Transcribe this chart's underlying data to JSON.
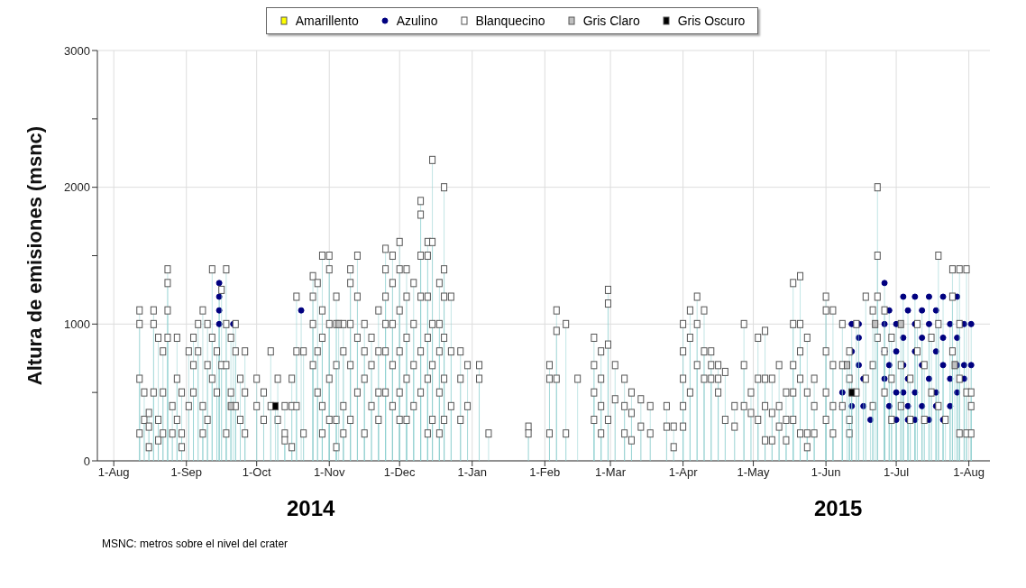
{
  "chart_data": {
    "type": "lollipop",
    "ylabel": "Altura de emisiones (msnc)",
    "legend": "top",
    "grid": true,
    "xlim": [
      "2014-07-25",
      "2015-08-10"
    ],
    "xticks": [
      {
        "value": "2014-08-01",
        "label": "1-Aug"
      },
      {
        "value": "2014-09-01",
        "label": "1-Sep"
      },
      {
        "value": "2014-10-01",
        "label": "1-Oct"
      },
      {
        "value": "2014-11-01",
        "label": "1-Nov"
      },
      {
        "value": "2014-12-01",
        "label": "1-Dec"
      },
      {
        "value": "2015-01-01",
        "label": "1-Jan"
      },
      {
        "value": "2015-02-01",
        "label": "1-Feb"
      },
      {
        "value": "2015-03-01",
        "label": "1-Mar"
      },
      {
        "value": "2015-04-01",
        "label": "1-Apr"
      },
      {
        "value": "2015-05-01",
        "label": "1-May"
      },
      {
        "value": "2015-06-01",
        "label": "1-Jun"
      },
      {
        "value": "2015-07-01",
        "label": "1-Jul"
      },
      {
        "value": "2015-08-01",
        "label": "1-Aug"
      }
    ],
    "ylim": [
      0,
      3000
    ],
    "yticks": [
      0,
      {
        "value": 500,
        "label": null
      },
      1000,
      {
        "value": 1500,
        "label": null
      },
      2000,
      {
        "value": 2500,
        "label": null
      },
      3000
    ],
    "annotations": [
      "2014",
      "2015",
      "MSNC: metros sobre el nivel del crater"
    ],
    "series": [
      {
        "name": "Amarillento",
        "color": "#ffff00",
        "marker": "square"
      },
      {
        "name": "Azulino",
        "color": "#000080",
        "marker": "circle",
        "x": [
          "2014-09-15",
          "2014-09-15",
          "2014-09-15",
          "2014-09-15",
          "2014-09-21",
          "2014-10-20",
          "2015-06-08",
          "2015-06-08",
          "2015-06-12",
          "2015-06-12",
          "2015-06-12",
          "2015-06-15",
          "2015-06-15",
          "2015-06-15",
          "2015-06-17",
          "2015-06-17",
          "2015-06-20",
          "2015-06-26",
          "2015-06-26",
          "2015-06-26",
          "2015-06-26",
          "2015-06-28",
          "2015-06-28",
          "2015-06-28",
          "2015-07-01",
          "2015-07-01",
          "2015-07-01",
          "2015-07-01",
          "2015-07-04",
          "2015-07-04",
          "2015-07-04",
          "2015-07-04",
          "2015-07-06",
          "2015-07-06",
          "2015-07-06",
          "2015-07-06",
          "2015-07-09",
          "2015-07-09",
          "2015-07-09",
          "2015-07-09",
          "2015-07-09",
          "2015-07-12",
          "2015-07-12",
          "2015-07-12",
          "2015-07-12",
          "2015-07-15",
          "2015-07-15",
          "2015-07-15",
          "2015-07-15",
          "2015-07-18",
          "2015-07-18",
          "2015-07-18",
          "2015-07-18",
          "2015-07-21",
          "2015-07-21",
          "2015-07-21",
          "2015-07-21",
          "2015-07-24",
          "2015-07-24",
          "2015-07-24",
          "2015-07-27",
          "2015-07-27",
          "2015-07-27",
          "2015-07-27",
          "2015-07-30",
          "2015-07-30",
          "2015-07-30",
          "2015-08-02",
          "2015-08-02"
        ],
        "values": [
          1300,
          1200,
          1100,
          1000,
          1000,
          1100,
          400,
          500,
          400,
          800,
          1000,
          700,
          900,
          1000,
          400,
          600,
          300,
          1300,
          1000,
          800,
          600,
          1100,
          700,
          400,
          1000,
          800,
          500,
          300,
          1200,
          900,
          700,
          500,
          1100,
          600,
          400,
          300,
          1200,
          1000,
          800,
          500,
          300,
          1100,
          900,
          700,
          400,
          1200,
          1000,
          600,
          300,
          1100,
          800,
          500,
          400,
          1200,
          900,
          700,
          300,
          1000,
          600,
          400,
          1200,
          900,
          700,
          500,
          1000,
          700,
          600,
          1000,
          700
        ]
      },
      {
        "name": "Blanquecino",
        "color": "#ffffff",
        "marker": "square",
        "x": [
          "2014-08-12",
          "2014-08-12",
          "2014-08-12",
          "2014-08-12",
          "2014-08-14",
          "2014-08-14",
          "2014-08-16",
          "2014-08-16",
          "2014-08-16",
          "2014-08-18",
          "2014-08-18",
          "2014-08-18",
          "2014-08-20",
          "2014-08-20",
          "2014-08-20",
          "2014-08-22",
          "2014-08-22",
          "2014-08-22",
          "2014-08-24",
          "2014-08-24",
          "2014-08-24",
          "2014-08-24",
          "2014-08-26",
          "2014-08-26",
          "2014-08-28",
          "2014-08-28",
          "2014-08-28",
          "2014-08-30",
          "2014-08-30",
          "2014-08-30",
          "2014-09-02",
          "2014-09-02",
          "2014-09-04",
          "2014-09-04",
          "2014-09-04",
          "2014-09-06",
          "2014-09-06",
          "2014-09-08",
          "2014-09-08",
          "2014-09-08",
          "2014-09-10",
          "2014-09-10",
          "2014-09-10",
          "2014-09-12",
          "2014-09-12",
          "2014-09-12",
          "2014-09-14",
          "2014-09-14",
          "2014-09-16",
          "2014-09-16",
          "2014-09-18",
          "2014-09-18",
          "2014-09-18",
          "2014-09-18",
          "2014-09-20",
          "2014-09-20",
          "2014-09-22",
          "2014-09-22",
          "2014-09-22",
          "2014-09-24",
          "2014-09-24",
          "2014-09-26",
          "2014-09-26",
          "2014-09-26",
          "2014-10-01",
          "2014-10-01",
          "2014-10-04",
          "2014-10-04",
          "2014-10-07",
          "2014-10-07",
          "2014-10-10",
          "2014-10-10",
          "2014-10-13",
          "2014-10-13",
          "2014-10-13",
          "2014-10-16",
          "2014-10-16",
          "2014-10-16",
          "2014-10-18",
          "2014-10-18",
          "2014-10-18",
          "2014-10-21",
          "2014-10-21",
          "2014-10-25",
          "2014-10-25",
          "2014-10-25",
          "2014-10-25",
          "2014-10-27",
          "2014-10-27",
          "2014-10-27",
          "2014-10-29",
          "2014-10-29",
          "2014-10-29",
          "2014-10-29",
          "2014-10-29",
          "2014-11-01",
          "2014-11-01",
          "2014-11-01",
          "2014-11-01",
          "2014-11-01",
          "2014-11-04",
          "2014-11-04",
          "2014-11-04",
          "2014-11-04",
          "2014-11-04",
          "2014-11-07",
          "2014-11-07",
          "2014-11-07",
          "2014-11-07",
          "2014-11-10",
          "2014-11-10",
          "2014-11-10",
          "2014-11-10",
          "2014-11-10",
          "2014-11-13",
          "2014-11-13",
          "2014-11-13",
          "2014-11-13",
          "2014-11-16",
          "2014-11-16",
          "2014-11-16",
          "2014-11-16",
          "2014-11-19",
          "2014-11-19",
          "2014-11-19",
          "2014-11-22",
          "2014-11-22",
          "2014-11-22",
          "2014-11-22",
          "2014-11-25",
          "2014-11-25",
          "2014-11-25",
          "2014-11-25",
          "2014-11-25",
          "2014-11-25",
          "2014-11-28",
          "2014-11-28",
          "2014-11-28",
          "2014-11-28",
          "2014-11-28",
          "2014-12-01",
          "2014-12-01",
          "2014-12-01",
          "2014-12-01",
          "2014-12-01",
          "2014-12-01",
          "2014-12-04",
          "2014-12-04",
          "2014-12-04",
          "2014-12-04",
          "2014-12-04",
          "2014-12-07",
          "2014-12-07",
          "2014-12-07",
          "2014-12-07",
          "2014-12-10",
          "2014-12-10",
          "2014-12-10",
          "2014-12-10",
          "2014-12-10",
          "2014-12-10",
          "2014-12-13",
          "2014-12-13",
          "2014-12-13",
          "2014-12-13",
          "2014-12-13",
          "2014-12-13",
          "2014-12-15",
          "2014-12-15",
          "2014-12-15",
          "2014-12-15",
          "2014-12-15",
          "2014-12-18",
          "2014-12-18",
          "2014-12-18",
          "2014-12-18",
          "2014-12-18",
          "2014-12-20",
          "2014-12-20",
          "2014-12-20",
          "2014-12-20",
          "2014-12-20",
          "2014-12-20",
          "2014-12-23",
          "2014-12-23",
          "2014-12-23",
          "2014-12-27",
          "2014-12-27",
          "2014-12-27",
          "2014-12-30",
          "2014-12-30",
          "2015-01-04",
          "2015-01-04",
          "2015-01-08",
          "2015-01-25",
          "2015-01-25",
          "2015-02-03",
          "2015-02-03",
          "2015-02-03",
          "2015-02-06",
          "2015-02-06",
          "2015-02-06",
          "2015-02-10",
          "2015-02-10",
          "2015-02-15",
          "2015-02-22",
          "2015-02-22",
          "2015-02-22",
          "2015-02-22",
          "2015-02-25",
          "2015-02-25",
          "2015-02-25",
          "2015-02-25",
          "2015-02-28",
          "2015-02-28",
          "2015-02-28",
          "2015-02-28",
          "2015-03-03",
          "2015-03-03",
          "2015-03-07",
          "2015-03-07",
          "2015-03-07",
          "2015-03-10",
          "2015-03-10",
          "2015-03-10",
          "2015-03-14",
          "2015-03-14",
          "2015-03-18",
          "2015-03-18",
          "2015-03-25",
          "2015-03-25",
          "2015-03-28",
          "2015-03-28",
          "2015-04-01",
          "2015-04-01",
          "2015-04-01",
          "2015-04-01",
          "2015-04-01",
          "2015-04-04",
          "2015-04-04",
          "2015-04-04",
          "2015-04-07",
          "2015-04-07",
          "2015-04-07",
          "2015-04-10",
          "2015-04-10",
          "2015-04-10",
          "2015-04-13",
          "2015-04-13",
          "2015-04-13",
          "2015-04-16",
          "2015-04-16",
          "2015-04-16",
          "2015-04-19",
          "2015-04-19",
          "2015-04-23",
          "2015-04-23",
          "2015-04-27",
          "2015-04-27",
          "2015-04-27",
          "2015-04-30",
          "2015-04-30",
          "2015-05-03",
          "2015-05-03",
          "2015-05-03",
          "2015-05-06",
          "2015-05-06",
          "2015-05-06",
          "2015-05-06",
          "2015-05-09",
          "2015-05-09",
          "2015-05-09",
          "2015-05-12",
          "2015-05-12",
          "2015-05-12",
          "2015-05-15",
          "2015-05-15",
          "2015-05-15",
          "2015-05-18",
          "2015-05-18",
          "2015-05-18",
          "2015-05-18",
          "2015-05-18",
          "2015-05-21",
          "2015-05-21",
          "2015-05-21",
          "2015-05-21",
          "2015-05-21",
          "2015-05-24",
          "2015-05-24",
          "2015-05-24",
          "2015-05-24",
          "2015-05-27",
          "2015-05-27",
          "2015-05-27",
          "2015-06-01",
          "2015-06-01",
          "2015-06-01",
          "2015-06-01",
          "2015-06-01",
          "2015-06-04",
          "2015-06-04",
          "2015-06-04",
          "2015-06-04",
          "2015-06-08",
          "2015-06-08",
          "2015-06-08",
          "2015-06-11",
          "2015-06-11",
          "2015-06-11",
          "2015-06-11",
          "2015-06-14",
          "2015-06-14",
          "2015-06-18",
          "2015-06-18",
          "2015-06-21",
          "2015-06-21",
          "2015-06-21",
          "2015-06-23",
          "2015-06-23",
          "2015-06-23",
          "2015-06-23",
          "2015-06-26",
          "2015-06-26",
          "2015-06-26",
          "2015-06-29",
          "2015-06-29",
          "2015-06-29",
          "2015-07-03",
          "2015-07-03",
          "2015-07-07",
          "2015-07-07",
          "2015-07-10",
          "2015-07-10",
          "2015-07-13",
          "2015-07-13",
          "2015-07-16",
          "2015-07-16",
          "2015-07-19",
          "2015-07-19",
          "2015-07-19",
          "2015-07-22",
          "2015-07-25",
          "2015-07-25",
          "2015-07-25",
          "2015-07-28",
          "2015-07-28",
          "2015-07-28",
          "2015-07-28",
          "2015-07-31",
          "2015-07-31",
          "2015-07-31",
          "2015-08-02",
          "2015-08-02",
          "2015-08-02"
        ],
        "values": [
          1100,
          1000,
          600,
          200,
          500,
          300,
          350,
          250,
          100,
          1100,
          1000,
          500,
          900,
          300,
          150,
          800,
          500,
          200,
          1400,
          1300,
          1100,
          900,
          400,
          200,
          900,
          600,
          300,
          500,
          200,
          100,
          800,
          400,
          900,
          700,
          500,
          1000,
          800,
          1100,
          400,
          200,
          1000,
          700,
          300,
          1400,
          900,
          600,
          800,
          500,
          1250,
          700,
          1400,
          1000,
          700,
          200,
          900,
          500,
          1000,
          800,
          400,
          600,
          300,
          800,
          500,
          200,
          600,
          400,
          500,
          300,
          800,
          400,
          600,
          300,
          400,
          200,
          150,
          600,
          400,
          100,
          1200,
          800,
          400,
          800,
          200,
          1350,
          1200,
          1000,
          700,
          1300,
          800,
          500,
          1500,
          1100,
          900,
          400,
          200,
          1500,
          1400,
          1000,
          600,
          300,
          1200,
          1000,
          700,
          300,
          100,
          1000,
          800,
          400,
          200,
          1400,
          1300,
          1000,
          700,
          300,
          1500,
          1200,
          900,
          500,
          1000,
          800,
          600,
          200,
          900,
          700,
          400,
          1100,
          800,
          500,
          300,
          1550,
          1400,
          1200,
          1000,
          800,
          500,
          1500,
          1300,
          1000,
          700,
          400,
          1600,
          1400,
          1100,
          800,
          500,
          300,
          1400,
          1200,
          900,
          600,
          300,
          1300,
          1000,
          700,
          400,
          1900,
          1800,
          1500,
          1200,
          800,
          500,
          1600,
          1500,
          1200,
          900,
          600,
          200,
          2200,
          1600,
          1000,
          700,
          300,
          1300,
          1000,
          800,
          500,
          200,
          2000,
          1400,
          1200,
          900,
          600,
          300,
          1200,
          800,
          400,
          800,
          600,
          300,
          700,
          400,
          700,
          600,
          200,
          250,
          200,
          700,
          600,
          200,
          1100,
          950,
          600,
          1000,
          200,
          600,
          900,
          700,
          500,
          300,
          800,
          600,
          400,
          200,
          1250,
          1150,
          850,
          300,
          700,
          450,
          600,
          400,
          200,
          500,
          350,
          150,
          450,
          250,
          400,
          200,
          400,
          250,
          250,
          100,
          1000,
          800,
          600,
          400,
          250,
          1100,
          900,
          500,
          1200,
          1000,
          700,
          1100,
          800,
          600,
          800,
          700,
          600,
          700,
          600,
          500,
          650,
          300,
          400,
          250,
          1000,
          700,
          400,
          500,
          350,
          900,
          600,
          300,
          950,
          600,
          400,
          150,
          600,
          350,
          150,
          700,
          400,
          250,
          500,
          300,
          150,
          1300,
          1000,
          700,
          500,
          300,
          1350,
          1000,
          800,
          600,
          200,
          900,
          500,
          200,
          100,
          600,
          400,
          200,
          1200,
          1100,
          800,
          500,
          300,
          1100,
          700,
          400,
          200,
          1000,
          700,
          400,
          800,
          600,
          300,
          200,
          1000,
          500,
          1200,
          600,
          1100,
          700,
          400,
          2000,
          1500,
          1200,
          900,
          1100,
          800,
          500,
          900,
          600,
          300,
          700,
          400,
          600,
          300,
          1000,
          800,
          700,
          300,
          900,
          500,
          1500,
          1000,
          400,
          300,
          1400,
          1200,
          800,
          1400,
          1000,
          600,
          200,
          1400,
          500,
          200,
          500,
          400,
          200
        ]
      },
      {
        "name": "Gris Claro",
        "color": "#c0c0c0",
        "marker": "square",
        "x": [
          "2014-09-20",
          "2014-11-05",
          "2015-06-10",
          "2015-06-22",
          "2015-07-03",
          "2015-07-26"
        ],
        "values": [
          400,
          1000,
          700,
          1000,
          1000,
          700
        ]
      },
      {
        "name": "Gris Oscuro",
        "color": "#000000",
        "marker": "square",
        "x": [
          "2014-10-09",
          "2015-06-12"
        ],
        "values": [
          400,
          500
        ]
      }
    ]
  }
}
